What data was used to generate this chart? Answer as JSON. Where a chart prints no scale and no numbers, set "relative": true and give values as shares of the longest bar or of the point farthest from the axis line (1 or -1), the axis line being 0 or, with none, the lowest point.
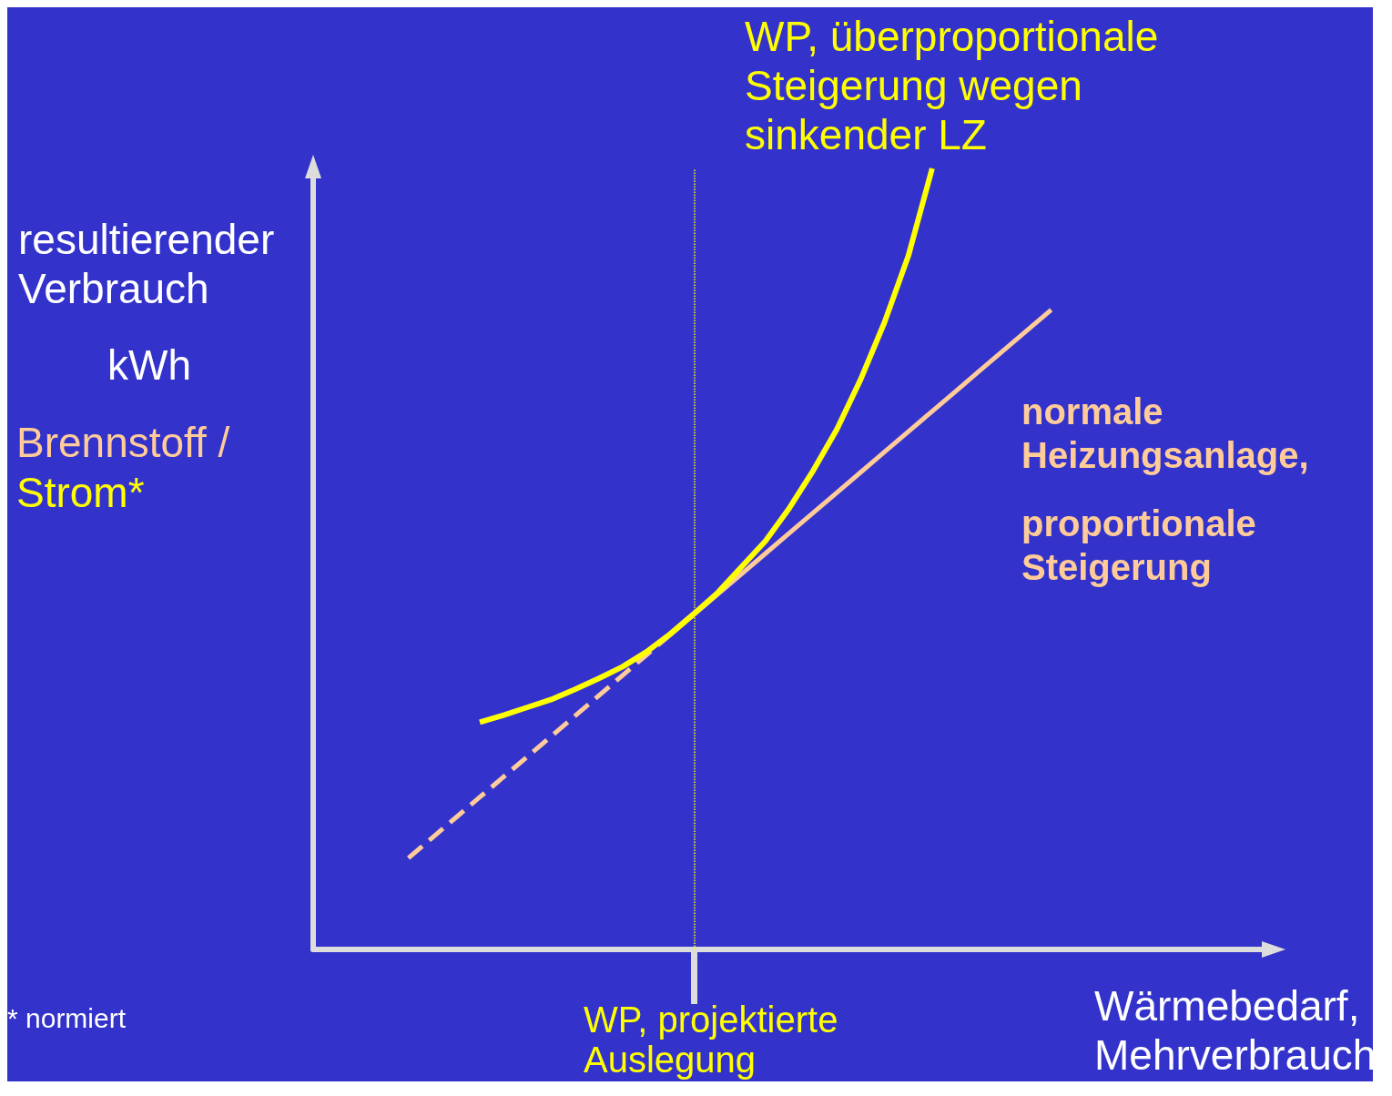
{
  "chart_data": {
    "type": "line",
    "relative": true,
    "ylabel": "resultierender Verbrauch",
    "xlabel": "Wärmebedarf, Mehrverbrauch",
    "grid": false,
    "legend": false,
    "marker": "none",
    "categories": [
      null,
      null,
      null,
      null,
      null,
      null,
      null,
      null,
      null,
      null,
      null,
      null,
      null,
      null,
      null,
      null,
      null,
      null,
      null,
      null,
      null,
      null,
      null,
      null,
      null,
      null,
      null,
      null,
      null,
      null,
      null,
      null,
      null,
      null,
      null,
      null,
      null,
      null,
      null,
      null,
      null
    ],
    "series": [
      {
        "name": "WP, überproportionale Steigerung wegen sinkender LZ",
        "color": "#ffff00",
        "line_style": "solid",
        "values": [
          null,
          null,
          null,
          null,
          null,
          null,
          null,
          0.291,
          0.3,
          0.31,
          0.32,
          0.333,
          0.347,
          0.362,
          0.381,
          0.404,
          0.43,
          0.457,
          0.49,
          0.523,
          0.565,
          0.613,
          0.666,
          0.73,
          0.803,
          0.888,
          1,
          null,
          null,
          null,
          null,
          null,
          null,
          null,
          null,
          null,
          null,
          null,
          null,
          null,
          null
        ]
      },
      {
        "name": "normale Heizungsanlage, proportionale Steigerung",
        "color": "#ffcc99",
        "line_style": "solid",
        "values": [
          null,
          null,
          null,
          null,
          null,
          null,
          null,
          null,
          null,
          null,
          null,
          null,
          null,
          null,
          null,
          0.403,
          0.429,
          0.455,
          0.481,
          0.507,
          0.533,
          0.559,
          0.585,
          0.611,
          0.637,
          0.663,
          0.689,
          0.715,
          0.741,
          0.767,
          0.793,
          0.819,
          null,
          null,
          null,
          null,
          null,
          null,
          null,
          null,
          null
        ]
      },
      {
        "color": "#ffcc99",
        "line_style": "dashed",
        "values": [
          null,
          null,
          null,
          null,
          0.117,
          0.143,
          0.169,
          0.195,
          0.221,
          0.247,
          0.273,
          0.299,
          0.325,
          0.351,
          0.377,
          0.403,
          null,
          null,
          null,
          null,
          null,
          null,
          null,
          null,
          null,
          null,
          null,
          null,
          null,
          null,
          null,
          null,
          null,
          null,
          null,
          null,
          null,
          null,
          null,
          null,
          null
        ]
      }
    ],
    "annotations": [
      "kWh",
      "Brennstoff /",
      "Strom*",
      "* normiert",
      "WP, projektierte Auslegung"
    ]
  }
}
